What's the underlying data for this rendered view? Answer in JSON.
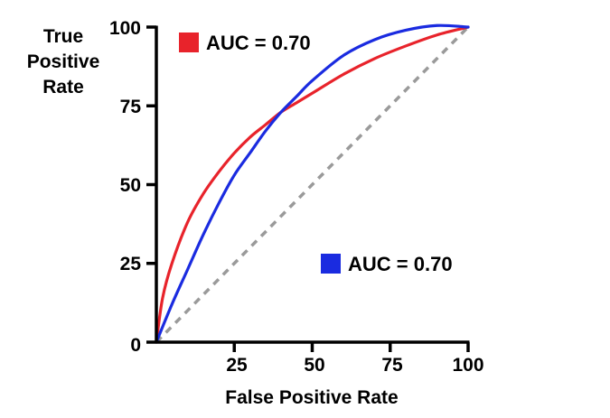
{
  "chart_data": {
    "type": "line",
    "xlabel": "False Positive Rate",
    "ylabel_lines": [
      "True",
      "Positive",
      "Rate"
    ],
    "xlim": [
      0,
      100
    ],
    "ylim": [
      0,
      100
    ],
    "x_ticks": [
      "25",
      "50",
      "75",
      "100"
    ],
    "y_ticks": [
      "0",
      "25",
      "50",
      "75",
      "100"
    ],
    "grid": false,
    "series": [
      {
        "color": "#e8232b",
        "legend_label": "AUC = 0.70",
        "legend_position": "top-left",
        "points": [
          {
            "x": 0,
            "y": 0
          },
          {
            "x": 2,
            "y": 14
          },
          {
            "x": 5,
            "y": 25
          },
          {
            "x": 10,
            "y": 38
          },
          {
            "x": 15,
            "y": 47
          },
          {
            "x": 20,
            "y": 54
          },
          {
            "x": 25,
            "y": 60
          },
          {
            "x": 30,
            "y": 65
          },
          {
            "x": 35,
            "y": 69
          },
          {
            "x": 40,
            "y": 73
          },
          {
            "x": 45,
            "y": 76
          },
          {
            "x": 50,
            "y": 79
          },
          {
            "x": 60,
            "y": 85
          },
          {
            "x": 70,
            "y": 90
          },
          {
            "x": 80,
            "y": 94
          },
          {
            "x": 90,
            "y": 97.5
          },
          {
            "x": 100,
            "y": 100
          }
        ]
      },
      {
        "color": "#1a2be0",
        "legend_label": "AUC = 0.70",
        "legend_position": "bottom-right",
        "points": [
          {
            "x": 0,
            "y": 0
          },
          {
            "x": 5,
            "y": 12
          },
          {
            "x": 10,
            "y": 23
          },
          {
            "x": 15,
            "y": 34
          },
          {
            "x": 20,
            "y": 44
          },
          {
            "x": 25,
            "y": 53
          },
          {
            "x": 30,
            "y": 60
          },
          {
            "x": 35,
            "y": 67
          },
          {
            "x": 40,
            "y": 73
          },
          {
            "x": 45,
            "y": 78
          },
          {
            "x": 50,
            "y": 83
          },
          {
            "x": 60,
            "y": 91
          },
          {
            "x": 70,
            "y": 96
          },
          {
            "x": 80,
            "y": 99
          },
          {
            "x": 90,
            "y": 100.5
          },
          {
            "x": 100,
            "y": 100
          }
        ]
      }
    ],
    "reference_line": {
      "style": "dashed",
      "color": "#9a9a9a",
      "points": [
        {
          "x": 0,
          "y": 0
        },
        {
          "x": 100,
          "y": 100
        }
      ]
    }
  }
}
